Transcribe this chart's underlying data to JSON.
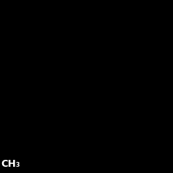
{
  "background": "#000000",
  "white": "#ffffff",
  "atom_colors": {
    "S": "#c8a000",
    "N": "#3333ff",
    "Cl": "#00cc00",
    "O": "#ff0000",
    "C": "#ffffff"
  },
  "figsize": [
    2.5,
    2.5
  ],
  "dpi": 100
}
